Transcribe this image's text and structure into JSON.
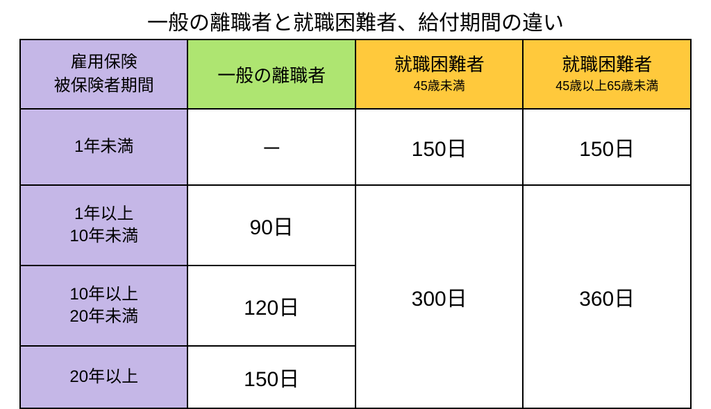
{
  "title": "一般の離職者と就職困難者、給付期間の違い",
  "colors": {
    "header_period_bg": "#c5b7e7",
    "header_general_bg": "#aee571",
    "header_difficult_bg": "#ffc93c",
    "rowlabel_bg": "#c5b7e7",
    "cell_bg": "#ffffff",
    "border": "#000000",
    "text": "#000000"
  },
  "table": {
    "type": "table",
    "columns": [
      {
        "key": "period",
        "label_lines": [
          "雇用保険",
          "被保険者期間"
        ]
      },
      {
        "key": "general",
        "label": "一般の離職者"
      },
      {
        "key": "diff_u45",
        "label": "就職困難者",
        "sub": "45歳未満"
      },
      {
        "key": "diff_o45",
        "label": "就職困難者",
        "sub": "45歳以上65歳未満"
      }
    ],
    "rows": {
      "r1": {
        "period_lines": [
          "1年未満"
        ],
        "general": "－",
        "diff_u45": "150日",
        "diff_o45": "150日"
      },
      "r2": {
        "period_lines": [
          "1年以上",
          "10年未満"
        ],
        "general": "90日"
      },
      "r3": {
        "period_lines": [
          "10年以上",
          "20年未満"
        ],
        "general": "120日"
      },
      "r4": {
        "period_lines": [
          "20年以上"
        ],
        "general": "150日"
      },
      "merged_r2_r4": {
        "diff_u45": "300日",
        "diff_o45": "360日"
      }
    },
    "fontsize_title": 30,
    "fontsize_header_main": 26,
    "fontsize_header_sub": 18,
    "fontsize_header_period": 24,
    "fontsize_rowlabel": 24,
    "fontsize_value": 30,
    "border_width": 2
  }
}
